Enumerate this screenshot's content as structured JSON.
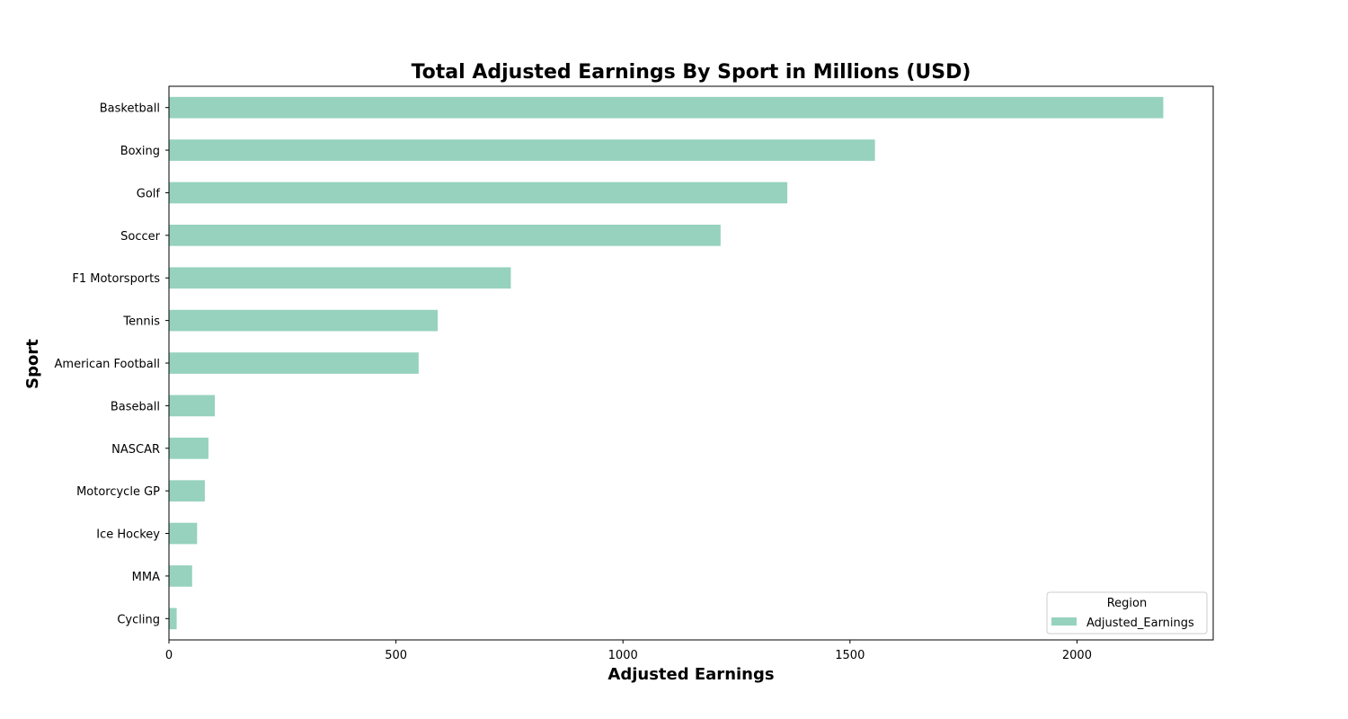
{
  "chart_data": {
    "type": "bar",
    "orientation": "horizontal",
    "title": "Total Adjusted Earnings By Sport in Millions (USD)",
    "xlabel": "Adjusted Earnings",
    "ylabel": "Sport",
    "xlim": [
      0,
      2300
    ],
    "xticks": [
      0,
      500,
      1000,
      1500,
      2000
    ],
    "grid": false,
    "legend": {
      "title": "Region",
      "placement": "lower-right",
      "entries": [
        "Adjusted_Earnings"
      ]
    },
    "colors": {
      "bar": "#96d2bd"
    },
    "categories": [
      "Basketball",
      "Boxing",
      "Golf",
      "Soccer",
      "F1 Motorsports",
      "Tennis",
      "American Football",
      "Baseball",
      "NASCAR",
      "Motorcycle GP",
      "Ice Hockey",
      "MMA",
      "Cycling"
    ],
    "series": [
      {
        "name": "Adjusted_Earnings",
        "values": [
          2190,
          1555,
          1362,
          1215,
          753,
          592,
          550,
          101,
          87,
          79,
          62,
          51,
          17
        ]
      }
    ]
  }
}
